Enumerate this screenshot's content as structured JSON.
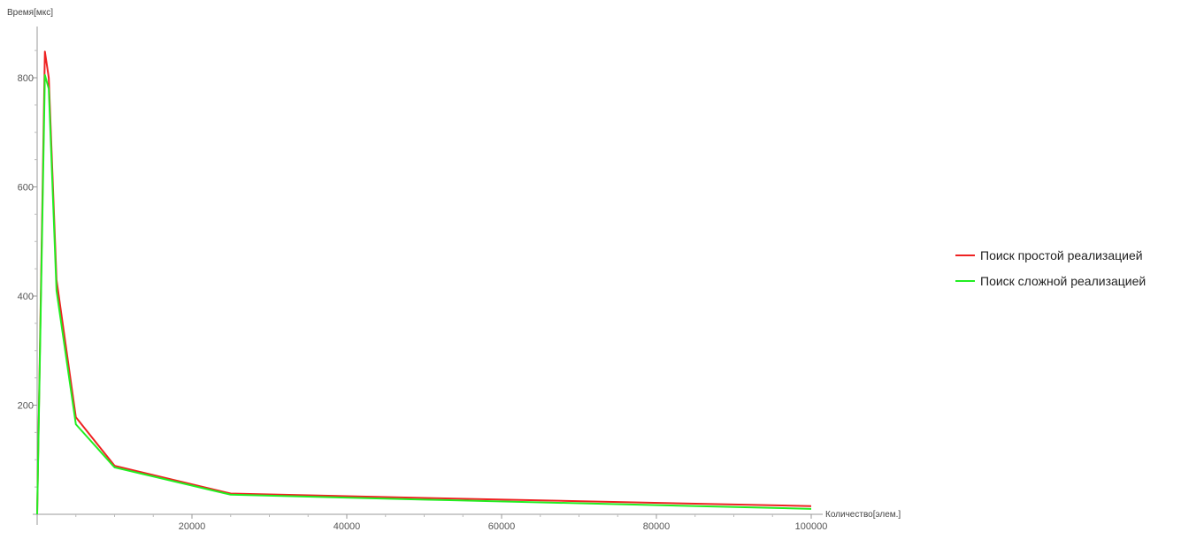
{
  "chart_data": {
    "type": "line",
    "title": "",
    "xlabel": "Количество[элем.]",
    "ylabel": "Время[мкс]",
    "xlim": [
      0,
      100000
    ],
    "ylim": [
      0,
      890
    ],
    "x_ticks": [
      {
        "value": 20000,
        "label": "20000"
      },
      {
        "value": 40000,
        "label": "40000"
      },
      {
        "value": 60000,
        "label": "60000"
      },
      {
        "value": 80000,
        "label": "80000"
      },
      {
        "value": 100000,
        "label": "100000"
      }
    ],
    "y_ticks": [
      {
        "value": 200,
        "label": "200"
      },
      {
        "value": 400,
        "label": "400"
      },
      {
        "value": 600,
        "label": "600"
      },
      {
        "value": 800,
        "label": "800"
      }
    ],
    "grid": false,
    "legend_position": "right",
    "series": [
      {
        "name": "Поиск простой реализацией",
        "color": "#ee2222",
        "points": [
          [
            0,
            0
          ],
          [
            1000,
            848
          ],
          [
            1500,
            800
          ],
          [
            2500,
            430
          ],
          [
            5000,
            178
          ],
          [
            10000,
            89
          ],
          [
            25000,
            38
          ],
          [
            50000,
            30
          ],
          [
            100000,
            15
          ]
        ]
      },
      {
        "name": "Поиск сложной реализацией",
        "color": "#22ee22",
        "points": [
          [
            0,
            0
          ],
          [
            1000,
            805
          ],
          [
            1500,
            780
          ],
          [
            2500,
            410
          ],
          [
            5000,
            165
          ],
          [
            10000,
            86
          ],
          [
            25000,
            36
          ],
          [
            50000,
            27
          ],
          [
            100000,
            10
          ]
        ]
      }
    ]
  }
}
